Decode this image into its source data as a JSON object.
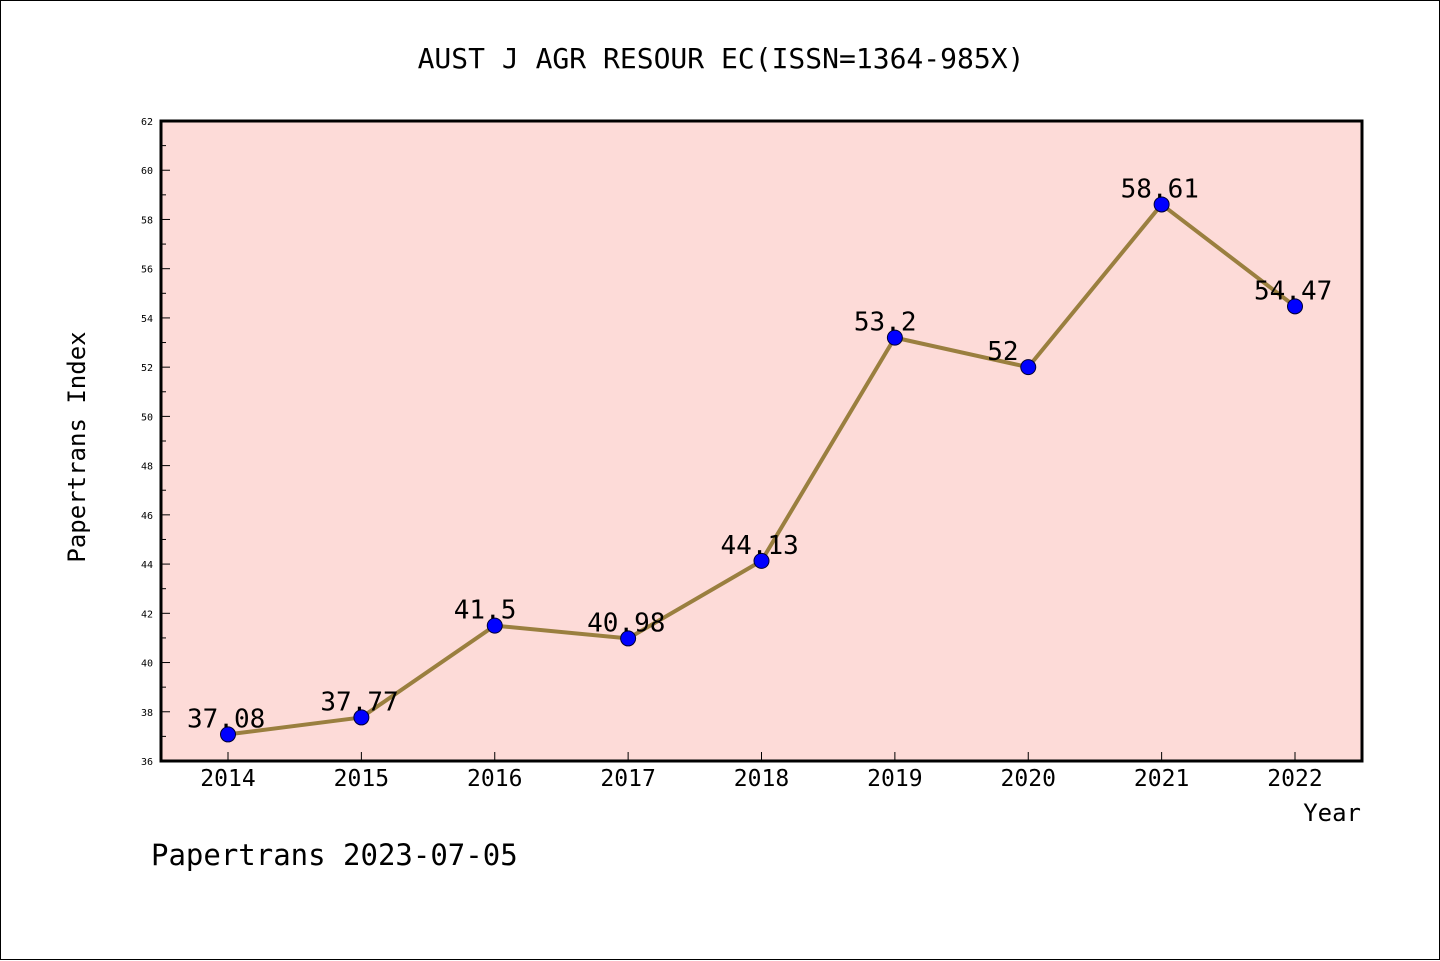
{
  "chart_data": {
    "type": "line",
    "title": "AUST J AGR RESOUR EC(ISSN=1364-985X)",
    "xlabel": "Year",
    "ylabel": "Papertrans Index",
    "x": [
      "2014",
      "2015",
      "2016",
      "2017",
      "2018",
      "2019",
      "2020",
      "2021",
      "2022"
    ],
    "values": [
      37.08,
      37.77,
      41.5,
      40.98,
      44.13,
      53.2,
      52,
      58.61,
      54.47
    ],
    "data_labels": [
      "37.08",
      "37.77",
      "41.5",
      "40.98",
      "44.13",
      "53.2",
      "52",
      "58.61",
      "54.47"
    ],
    "ylim": [
      36,
      62
    ],
    "yticks": [
      "36",
      "38",
      "40",
      "42",
      "44",
      "46",
      "48",
      "50",
      "52",
      "54",
      "56",
      "58",
      "60",
      "62"
    ],
    "grid": false,
    "footer": "Papertrans 2023-07-05",
    "colors": {
      "plot_background": "#fddbd8",
      "line": "#9a7f3f",
      "marker": "#0000ff",
      "axis": "#000000"
    }
  }
}
